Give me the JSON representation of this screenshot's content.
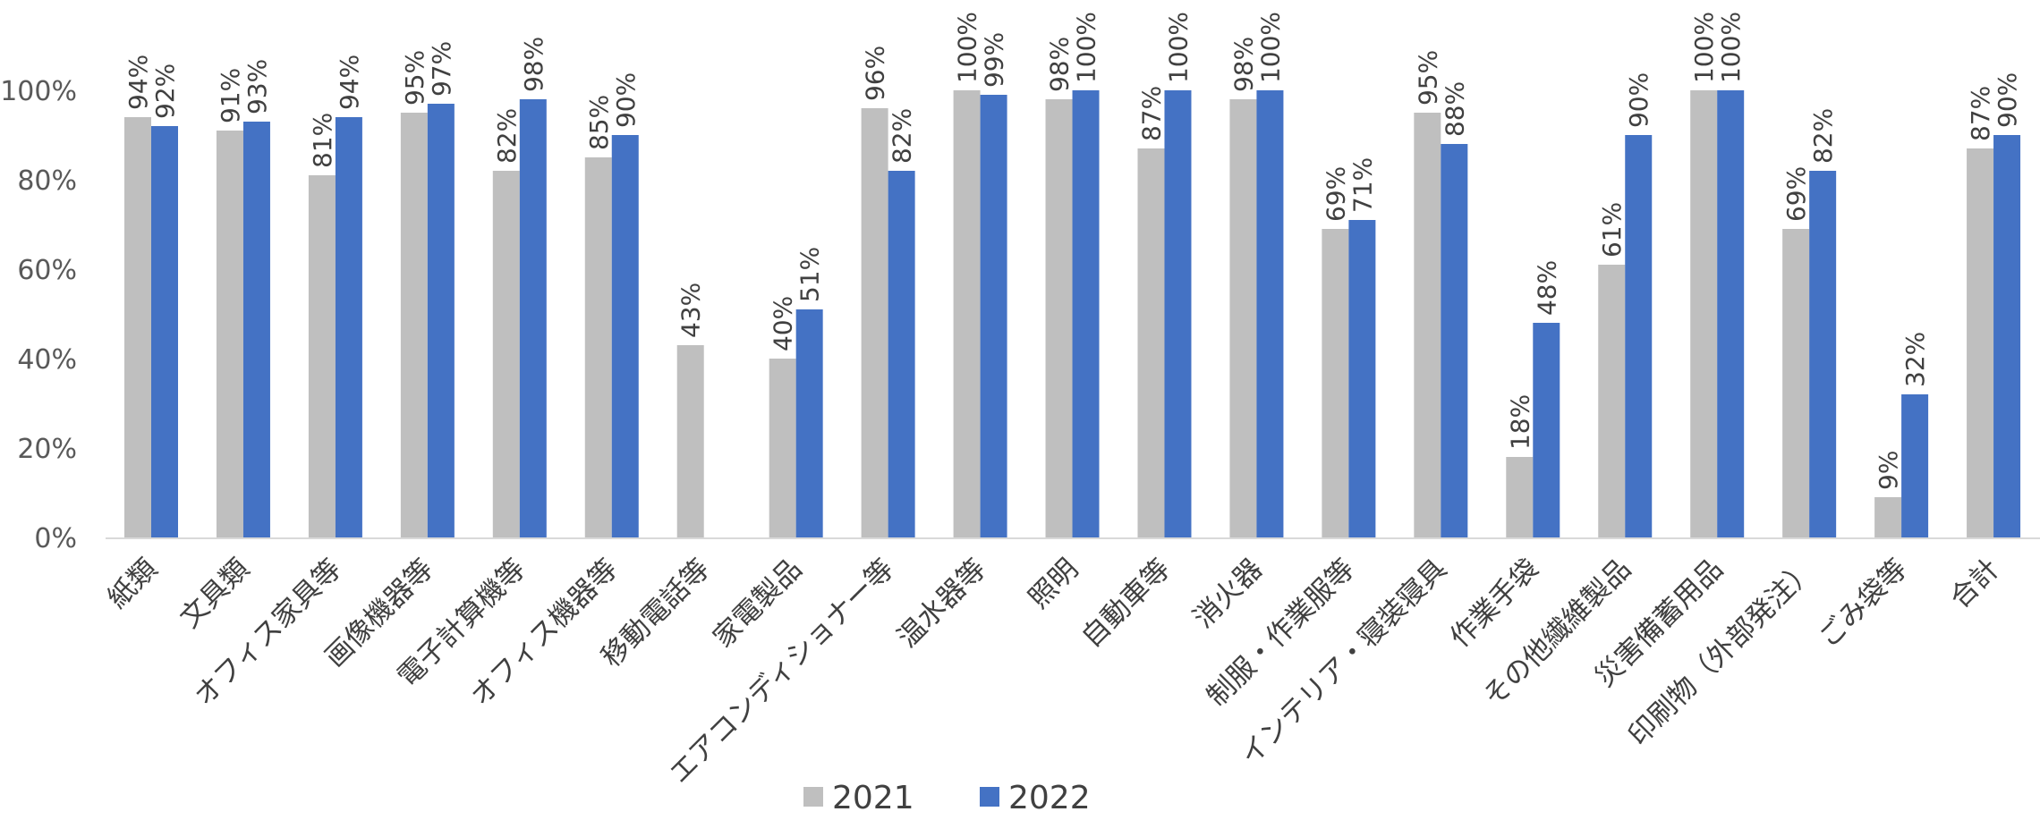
{
  "chart_data": {
    "type": "bar",
    "title": "",
    "xlabel": "",
    "ylabel": "",
    "ylim": [
      0,
      100
    ],
    "yticks": [
      "0%",
      "20%",
      "40%",
      "60%",
      "80%",
      "100%"
    ],
    "grid": false,
    "legend_position": "bottom",
    "categories": [
      "紙類",
      "文具類",
      "オフィス家具等",
      "画像機器等",
      "電子計算機等",
      "オフィス機器等",
      "移動電話等",
      "家電製品",
      "エアコンディショナー等",
      "温水器等",
      "照明",
      "自動車等",
      "消火器",
      "制服・作業服等",
      "インテリア・寝装寝具",
      "作業手袋",
      "その他繊維製品",
      "災害備蓄用品",
      "印刷物（外部発注）",
      "ごみ袋等",
      "合計"
    ],
    "series": [
      {
        "name": "2021",
        "color": "#bfbfbf",
        "values": [
          94,
          91,
          81,
          95,
          82,
          85,
          43,
          40,
          96,
          100,
          98,
          87,
          98,
          69,
          95,
          18,
          61,
          100,
          69,
          9,
          87
        ],
        "labels": [
          "94%",
          "91%",
          "81%",
          "95%",
          "82%",
          "85%",
          "43%",
          "40%",
          "96%",
          "100%",
          "98%",
          "87%",
          "98%",
          "69%",
          "95%",
          "18%",
          "61%",
          "100%",
          "69%",
          "9%",
          "87%"
        ]
      },
      {
        "name": "2022",
        "color": "#4472c4",
        "values": [
          92,
          93,
          94,
          97,
          98,
          90,
          null,
          51,
          82,
          99,
          100,
          100,
          100,
          71,
          88,
          48,
          90,
          100,
          82,
          32,
          90
        ],
        "labels": [
          "92%",
          "93%",
          "94%",
          "97%",
          "98%",
          "90%",
          "",
          "51%",
          "82%",
          "99%",
          "100%",
          "100%",
          "100%",
          "71%",
          "88%",
          "48%",
          "90%",
          "100%",
          "82%",
          "32%",
          "90%"
        ]
      }
    ]
  }
}
